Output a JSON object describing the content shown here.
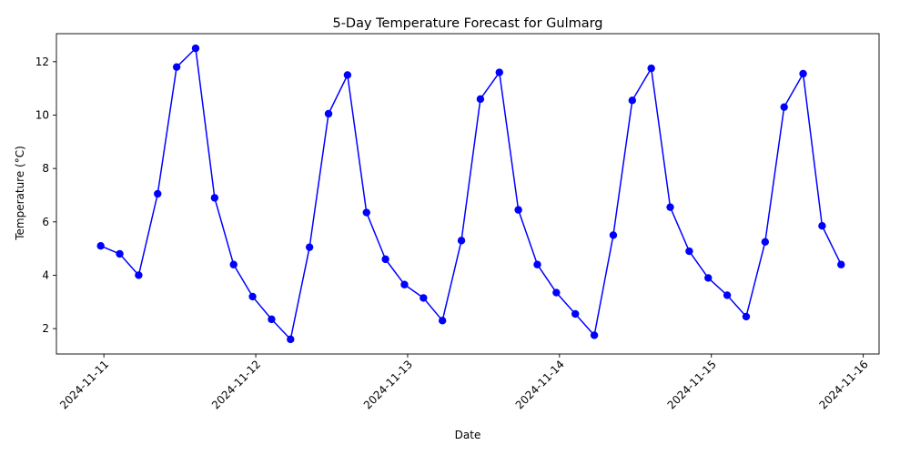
{
  "chart_data": {
    "type": "line",
    "title": "5-Day Temperature Forecast for Gulmarg",
    "xlabel": "Date",
    "ylabel": "Temperature (°C)",
    "x_tick_labels": [
      "2024-11-11",
      "2024-11-12",
      "2024-11-13",
      "2024-11-14",
      "2024-11-15",
      "2024-11-16"
    ],
    "y_tick_labels": [
      "2",
      "4",
      "6",
      "8",
      "10",
      "12"
    ],
    "ylim": [
      1.05,
      13.05
    ],
    "xlim": [
      "2024-11-10T16:30",
      "2024-11-16T02:30"
    ],
    "grid": false,
    "legend": "none",
    "series_color": "#0000ff",
    "series": [
      {
        "x": [
          "2024-11-10T23:30",
          "2024-11-11T02:30",
          "2024-11-11T05:30",
          "2024-11-11T08:30",
          "2024-11-11T11:30",
          "2024-11-11T14:30",
          "2024-11-11T17:30",
          "2024-11-11T20:30",
          "2024-11-11T23:30",
          "2024-11-12T02:30",
          "2024-11-12T05:30",
          "2024-11-12T08:30",
          "2024-11-12T11:30",
          "2024-11-12T14:30",
          "2024-11-12T17:30",
          "2024-11-12T20:30",
          "2024-11-12T23:30",
          "2024-11-13T02:30",
          "2024-11-13T05:30",
          "2024-11-13T08:30",
          "2024-11-13T11:30",
          "2024-11-13T14:30",
          "2024-11-13T17:30",
          "2024-11-13T20:30",
          "2024-11-13T23:30",
          "2024-11-14T02:30",
          "2024-11-14T05:30",
          "2024-11-14T08:30",
          "2024-11-14T11:30",
          "2024-11-14T14:30",
          "2024-11-14T17:30",
          "2024-11-14T20:30",
          "2024-11-14T23:30",
          "2024-11-15T02:30",
          "2024-11-15T05:30",
          "2024-11-15T08:30",
          "2024-11-15T11:30",
          "2024-11-15T14:30",
          "2024-11-15T17:30",
          "2024-11-15T20:30"
        ],
        "values": [
          5.1,
          4.8,
          4.0,
          7.05,
          11.8,
          12.5,
          6.9,
          4.4,
          3.2,
          2.35,
          1.6,
          5.05,
          10.05,
          11.5,
          6.35,
          4.6,
          3.65,
          3.15,
          2.3,
          5.3,
          10.6,
          11.6,
          6.45,
          4.4,
          3.35,
          2.55,
          1.75,
          5.5,
          10.55,
          11.75,
          6.55,
          4.9,
          3.9,
          3.25,
          2.45,
          5.25,
          10.3,
          11.55,
          5.85,
          4.4
        ]
      }
    ]
  }
}
